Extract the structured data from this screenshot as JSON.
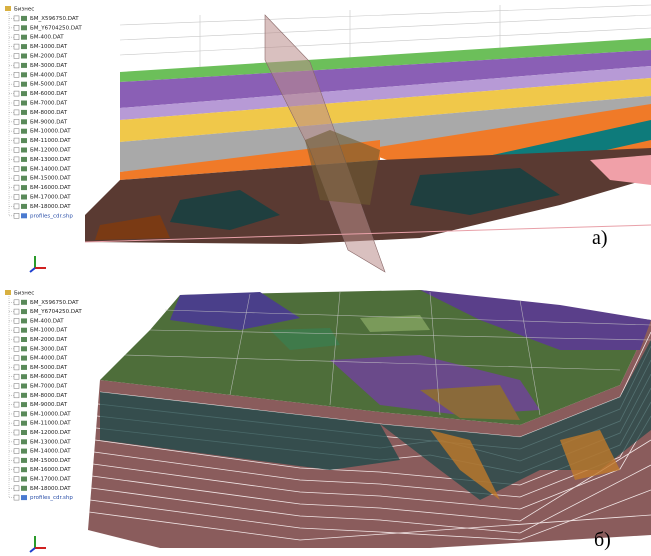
{
  "panels": [
    {
      "label": "а)",
      "tree": {
        "root": "Бизнес",
        "items": [
          "БМ_X596750.DAT",
          "БМ_Y6704250.DAT",
          "БМ-400.DAT",
          "БМ-1000.DAT",
          "БМ-2000.DAT",
          "БМ-3000.DAT",
          "БМ-4000.DAT",
          "БМ-5000.DAT",
          "БМ-6000.DAT",
          "БМ-7000.DAT",
          "БМ-8000.DAT",
          "БМ-9000.DAT",
          "БМ-10000.DAT",
          "БМ-11000.DAT",
          "БМ-12000.DAT",
          "БМ-13000.DAT",
          "БМ-14000.DAT",
          "БМ-15000.DAT",
          "БМ-16000.DAT",
          "БМ-17000.DAT",
          "БМ-18000.DAT",
          "profiles_cdr.shp"
        ]
      }
    },
    {
      "label": "б)",
      "tree": {
        "root": "Бизнес",
        "items": [
          "БМ_X596750.DAT",
          "БМ_Y6704250.DAT",
          "БМ-400.DAT",
          "БМ-1000.DAT",
          "БМ-2000.DAT",
          "БМ-3000.DAT",
          "БМ-4000.DAT",
          "БМ-5000.DAT",
          "БМ-6000.DAT",
          "БМ-7000.DAT",
          "БМ-8000.DAT",
          "БМ-9000.DAT",
          "БМ-10000.DAT",
          "БМ-11000.DAT",
          "БМ-12000.DAT",
          "БМ-13000.DAT",
          "БМ-14000.DAT",
          "БМ-15000.DAT",
          "БМ-16000.DAT",
          "БМ-17000.DAT",
          "БМ-18000.DAT",
          "profiles_cdr.shp"
        ]
      }
    }
  ]
}
